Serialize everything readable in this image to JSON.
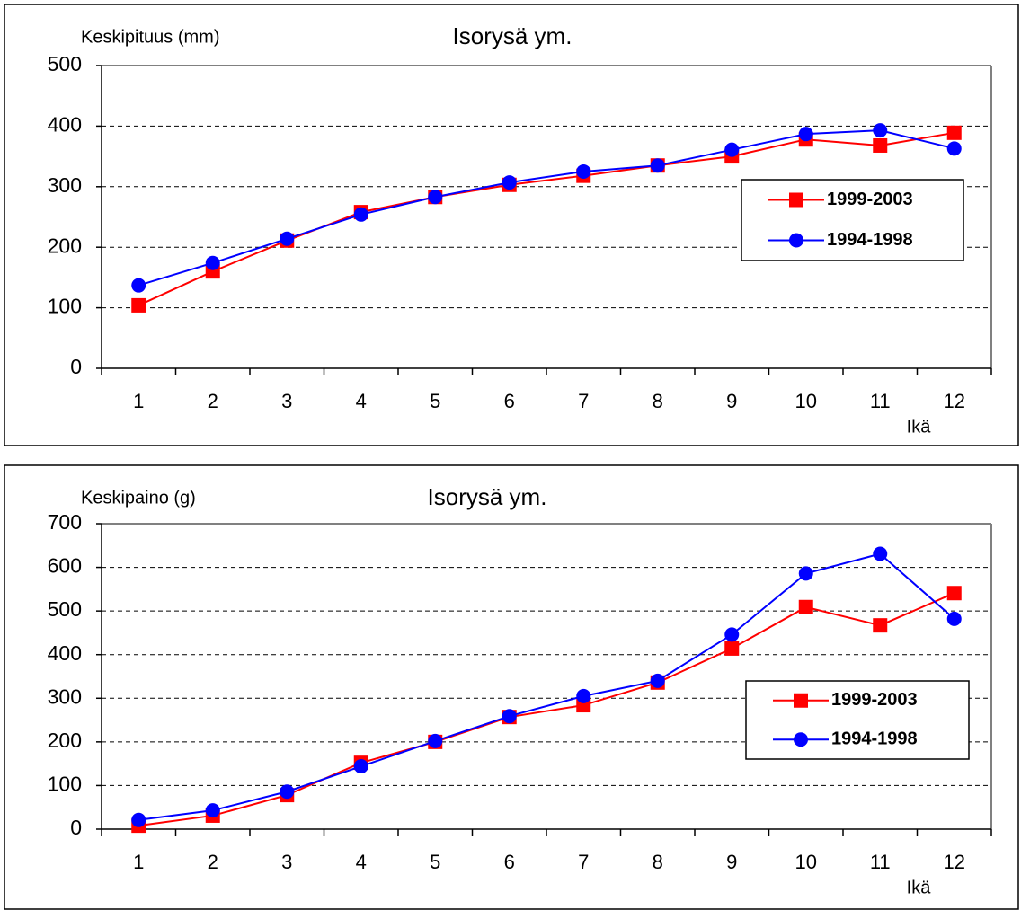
{
  "chart_data": [
    {
      "type": "line",
      "title": "Isorysä ym.",
      "y_label": "Keskipituus (mm)",
      "x_label": "Ikä",
      "categories": [
        "1",
        "2",
        "3",
        "4",
        "5",
        "6",
        "7",
        "8",
        "9",
        "10",
        "11",
        "12"
      ],
      "series": [
        {
          "name": "1999-2003",
          "color": "#ff0000",
          "marker": "square",
          "values": [
            104,
            160,
            211,
            258,
            283,
            303,
            318,
            335,
            350,
            378,
            368,
            389
          ]
        },
        {
          "name": "1994-1998",
          "color": "#0000ff",
          "marker": "circle",
          "values": [
            137,
            174,
            214,
            254,
            283,
            307,
            325,
            335,
            361,
            387,
            393,
            363
          ]
        }
      ],
      "ylim": [
        0,
        500
      ],
      "yticks": [
        0,
        100,
        200,
        300,
        400,
        500
      ],
      "grid": true
    },
    {
      "type": "line",
      "title": "Isorysä ym.",
      "y_label": "Keskipaino (g)",
      "x_label": "Ikä",
      "categories": [
        "1",
        "2",
        "3",
        "4",
        "5",
        "6",
        "7",
        "8",
        "9",
        "10",
        "11",
        "12"
      ],
      "series": [
        {
          "name": "1999-2003",
          "color": "#ff0000",
          "marker": "square",
          "values": [
            8,
            31,
            78,
            152,
            200,
            257,
            284,
            336,
            414,
            509,
            467,
            541
          ]
        },
        {
          "name": "1994-1998",
          "color": "#0000ff",
          "marker": "circle",
          "values": [
            21,
            43,
            86,
            144,
            202,
            259,
            305,
            340,
            446,
            586,
            631,
            482
          ]
        }
      ],
      "ylim": [
        0,
        700
      ],
      "yticks": [
        0,
        100,
        200,
        300,
        400,
        500,
        600,
        700
      ],
      "grid": true
    }
  ]
}
